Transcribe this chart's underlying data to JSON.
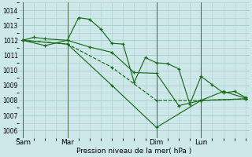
{
  "xlabel": "Pression niveau de la mer( hPa )",
  "bg_color": "#cce8e8",
  "grid_color": "#aacccc",
  "line_color": "#1a6b1a",
  "ylim": [
    1005.5,
    1014.5
  ],
  "yticks": [
    1006,
    1007,
    1008,
    1009,
    1010,
    1011,
    1012,
    1013,
    1014
  ],
  "xtick_labels": [
    "Sam",
    "Mar",
    "Dim",
    "Lun"
  ],
  "xtick_positions": [
    0,
    24,
    72,
    96
  ],
  "xlim": [
    -2,
    122
  ],
  "series": [
    {
      "x": [
        0,
        6,
        12,
        24,
        30,
        36,
        42,
        48,
        54,
        60,
        66,
        72,
        78,
        84,
        90,
        96,
        102,
        108,
        114,
        120
      ],
      "y": [
        1012.0,
        1012.2,
        1012.1,
        1012.0,
        1013.5,
        1013.4,
        1012.75,
        1011.8,
        1011.75,
        1009.2,
        1010.85,
        1010.5,
        1010.45,
        1010.1,
        1007.75,
        1009.6,
        1009.05,
        1008.5,
        1008.6,
        1008.2
      ],
      "style": "-",
      "marker": "+"
    },
    {
      "x": [
        0,
        12,
        24,
        36,
        48,
        60,
        72,
        84,
        96,
        108,
        120
      ],
      "y": [
        1012.0,
        1011.65,
        1012.0,
        1011.55,
        1011.2,
        1009.85,
        1009.8,
        1007.65,
        1008.0,
        1008.6,
        1008.15
      ],
      "style": "-",
      "marker": "+"
    },
    {
      "x": [
        0,
        24,
        48,
        72,
        96,
        120
      ],
      "y": [
        1012.0,
        1011.75,
        1010.2,
        1008.0,
        1008.0,
        1008.1
      ],
      "style": "--",
      "marker": "+"
    },
    {
      "x": [
        0,
        24,
        48,
        72,
        96,
        120
      ],
      "y": [
        1012.0,
        1011.75,
        1009.0,
        1006.2,
        1008.0,
        1008.1
      ],
      "style": "-",
      "marker": "+"
    }
  ],
  "vline_positions": [
    0,
    24,
    72,
    96
  ],
  "vline_color": "#446644"
}
